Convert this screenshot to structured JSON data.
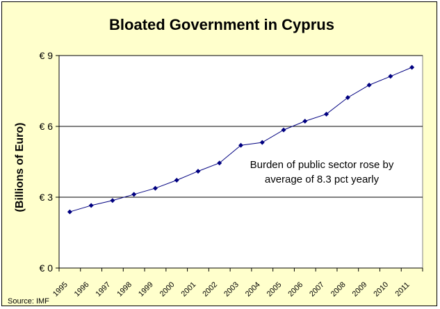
{
  "chart_data": {
    "type": "line",
    "title": "Bloated Government in Cyprus",
    "ylabel": "(Billions of Euro)",
    "xlabel": "",
    "x": [
      "1995",
      "1996",
      "1997",
      "1998",
      "1999",
      "2000",
      "2001",
      "2002",
      "2003",
      "2004",
      "2005",
      "2006",
      "2007",
      "2008",
      "2009",
      "2010",
      "2011"
    ],
    "series": [
      {
        "values": [
          2.38,
          2.65,
          2.86,
          3.12,
          3.38,
          3.72,
          4.1,
          4.45,
          5.2,
          5.32,
          5.85,
          6.22,
          6.52,
          7.22,
          7.75,
          8.12,
          8.5
        ]
      }
    ],
    "yticks": [
      {
        "value": 0,
        "label": "€ 0"
      },
      {
        "value": 3,
        "label": "€ 3"
      },
      {
        "value": 6,
        "label": "€ 6"
      },
      {
        "value": 9,
        "label": "€ 9"
      }
    ],
    "ylim": [
      0,
      9
    ],
    "grid": "horizontal",
    "annotation": [
      "Burden of public sector rose by",
      "average of 8.3 pct yearly"
    ],
    "source": "Source: IMF",
    "colors": {
      "line": "#000080",
      "background": "#ffffcc",
      "plot": "#ffffff",
      "grid": "#000000"
    }
  }
}
